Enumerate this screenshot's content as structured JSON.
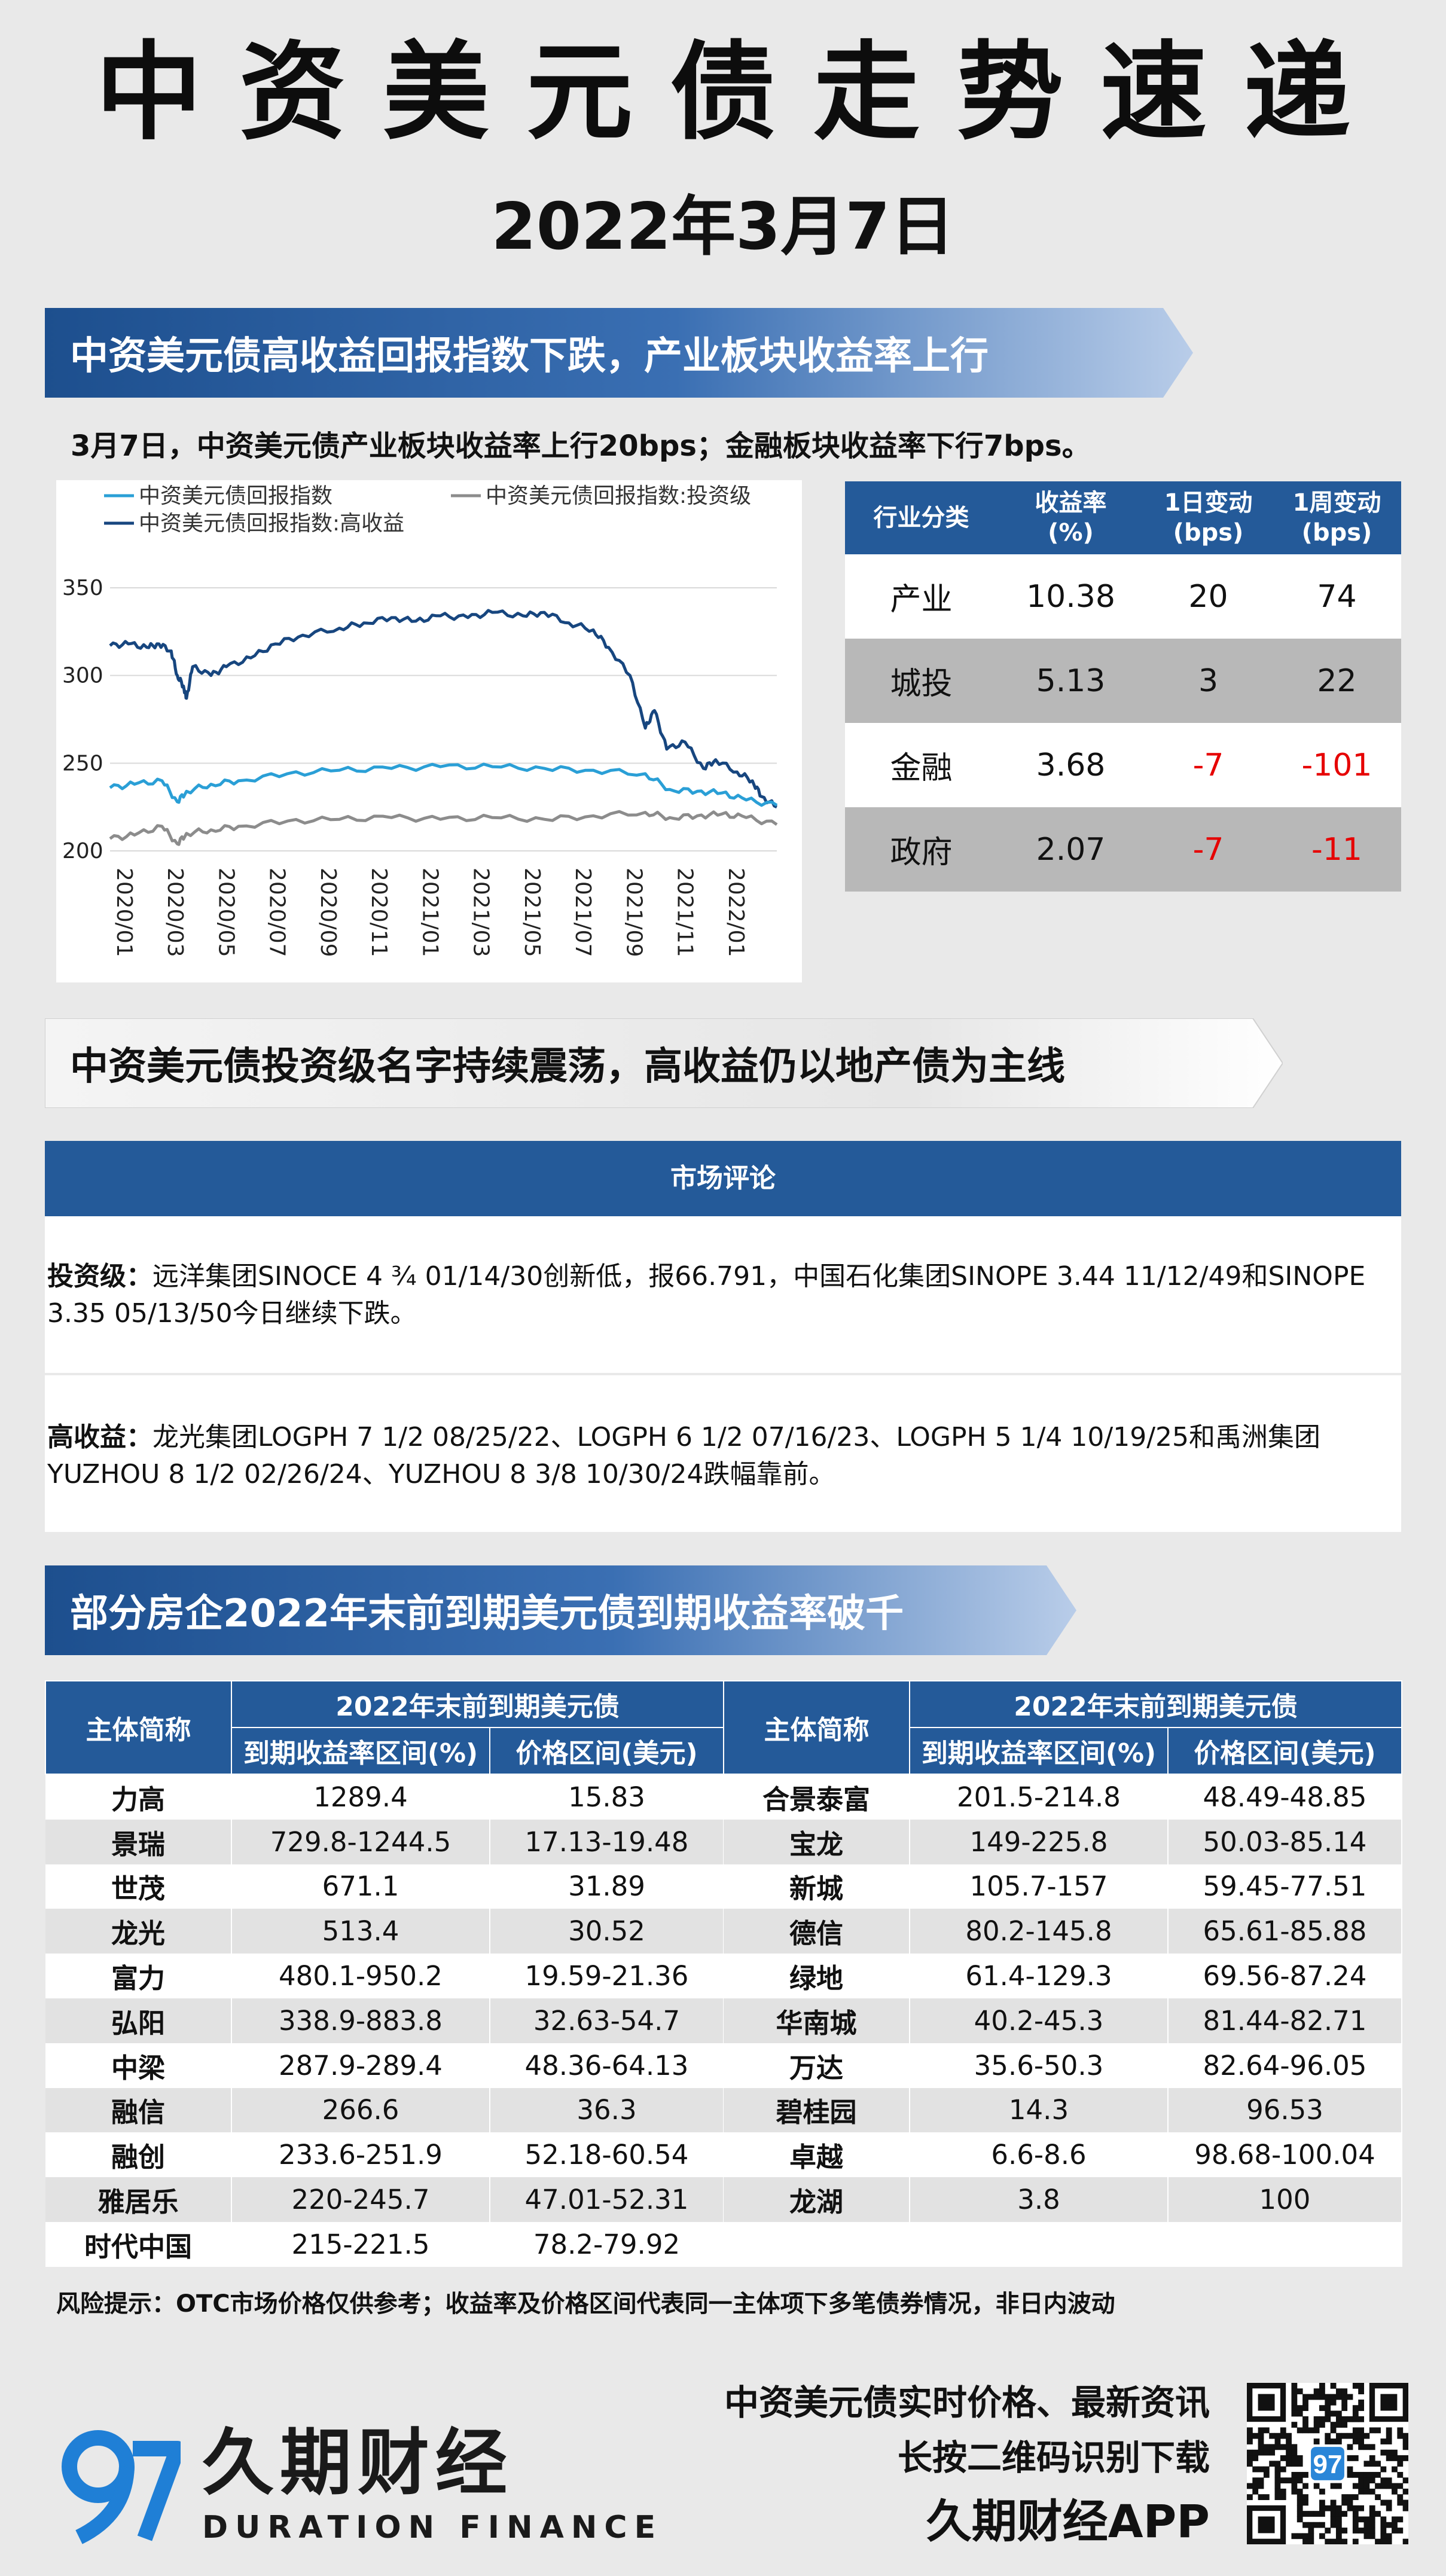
{
  "header": {
    "title": "中资美元债走势速递",
    "date": "2022年3月7日"
  },
  "section1": {
    "banner": "中资美元债高收益回报指数下跌，产业板块收益率上行",
    "subtitle": "3月7日，中资美元债产业板块收益率上行20bps；金融板块收益率下行7bps。"
  },
  "chart_data": {
    "type": "line",
    "x_labels": [
      "2020/01",
      "2020/03",
      "2020/05",
      "2020/07",
      "2020/09",
      "2020/11",
      "2021/01",
      "2021/03",
      "2021/05",
      "2021/07",
      "2021/09",
      "2021/11",
      "2022/01"
    ],
    "ylim": [
      200,
      350
    ],
    "yticks": [
      200,
      250,
      300,
      350
    ],
    "legend": [
      "中资美元债回报指数",
      "中资美元债回报指数:投资级",
      "中资美元债回报指数:高收益"
    ],
    "legend_position": "top-left",
    "grid": "horizontal",
    "colors": {
      "total": "#2a9fd6",
      "ig": "#8c8c8c",
      "hy": "#17467f"
    },
    "series": [
      {
        "name": "中资美元债回报指数:高收益",
        "values": [
          [
            2020.0,
            317
          ],
          [
            2020.06,
            318
          ],
          [
            2020.12,
            316
          ],
          [
            2020.16,
            318
          ],
          [
            2020.2,
            314
          ],
          [
            2020.22,
            300
          ],
          [
            2020.24,
            294
          ],
          [
            2020.25,
            287
          ],
          [
            2020.27,
            305
          ],
          [
            2020.33,
            300
          ],
          [
            2020.38,
            305
          ],
          [
            2020.46,
            310
          ],
          [
            2020.54,
            318
          ],
          [
            2020.63,
            323
          ],
          [
            2020.75,
            327
          ],
          [
            2020.83,
            330
          ],
          [
            2020.92,
            333
          ],
          [
            2021.0,
            331
          ],
          [
            2021.08,
            334
          ],
          [
            2021.17,
            333
          ],
          [
            2021.25,
            336
          ],
          [
            2021.35,
            334
          ],
          [
            2021.42,
            336
          ],
          [
            2021.5,
            330
          ],
          [
            2021.58,
            326
          ],
          [
            2021.63,
            316
          ],
          [
            2021.7,
            300
          ],
          [
            2021.75,
            270
          ],
          [
            2021.78,
            280
          ],
          [
            2021.82,
            258
          ],
          [
            2021.88,
            262
          ],
          [
            2021.94,
            247
          ],
          [
            2021.98,
            252
          ],
          [
            2022.05,
            245
          ],
          [
            2022.1,
            240
          ],
          [
            2022.13,
            231
          ],
          [
            2022.18,
            225
          ]
        ]
      },
      {
        "name": "中资美元债回报指数",
        "values": [
          [
            2020.0,
            236
          ],
          [
            2020.08,
            238
          ],
          [
            2020.17,
            240
          ],
          [
            2020.22,
            228
          ],
          [
            2020.25,
            234
          ],
          [
            2020.33,
            238
          ],
          [
            2020.42,
            240
          ],
          [
            2020.58,
            244
          ],
          [
            2020.75,
            246
          ],
          [
            2020.92,
            247
          ],
          [
            2021.08,
            248
          ],
          [
            2021.25,
            248
          ],
          [
            2021.42,
            247
          ],
          [
            2021.58,
            246
          ],
          [
            2021.75,
            244
          ],
          [
            2021.83,
            235
          ],
          [
            2021.92,
            234
          ],
          [
            2022.0,
            233
          ],
          [
            2022.08,
            229
          ],
          [
            2022.18,
            226
          ]
        ]
      },
      {
        "name": "中资美元债回报指数:投资级",
        "values": [
          [
            2020.0,
            207
          ],
          [
            2020.08,
            209
          ],
          [
            2020.17,
            214
          ],
          [
            2020.22,
            204
          ],
          [
            2020.25,
            210
          ],
          [
            2020.33,
            212
          ],
          [
            2020.42,
            214
          ],
          [
            2020.58,
            217
          ],
          [
            2020.75,
            218
          ],
          [
            2020.92,
            219
          ],
          [
            2021.08,
            218
          ],
          [
            2021.25,
            219
          ],
          [
            2021.42,
            218
          ],
          [
            2021.58,
            220
          ],
          [
            2021.75,
            222
          ],
          [
            2021.83,
            219
          ],
          [
            2021.92,
            220
          ],
          [
            2022.0,
            221
          ],
          [
            2022.08,
            219
          ],
          [
            2022.18,
            215
          ]
        ]
      }
    ]
  },
  "industry_table": {
    "headers": [
      "行业分类",
      "收益率\n(%)",
      "1日变动\n(bps)",
      "1周变动\n(bps)"
    ],
    "rows": [
      {
        "name": "产业",
        "yield": "10.38",
        "d1": "20",
        "w1": "74",
        "neg": false
      },
      {
        "name": "城投",
        "yield": "5.13",
        "d1": "3",
        "w1": "22",
        "neg": false
      },
      {
        "name": "金融",
        "yield": "3.68",
        "d1": "-7",
        "w1": "-101",
        "neg": true
      },
      {
        "name": "政府",
        "yield": "2.07",
        "d1": "-7",
        "w1": "-11",
        "neg": true
      }
    ]
  },
  "section2": {
    "banner": "中资美元债投资级名字持续震荡，高收益仍以地产债为主线",
    "comment_header": "市场评论",
    "ig_label": "投资级：",
    "ig_text": "远洋集团SINOCE 4 ¾ 01/14/30创新低，报66.791，中国石化集团SINOPE 3.44 11/12/49和SINOPE 3.35 05/13/50今日继续下跌。",
    "hy_label": "高收益：",
    "hy_text": "龙光集团LOGPH 7 1/2 08/25/22、LOGPH 6 1/2 07/16/23、LOGPH 5 1/4 10/19/25和禹洲集团YUZHOU 8 1/2 02/26/24、YUZHOU 8 3/8 10/30/24跌幅靠前。"
  },
  "section3": {
    "banner": "部分房企2022年末前到期美元债到期收益率破千",
    "col_entity": "主体简称",
    "col_group": "2022年末前到期美元债",
    "col_yield": "到期收益率区间(%)",
    "col_price": "价格区间(美元)",
    "left": [
      [
        "力高",
        "1289.4",
        "15.83"
      ],
      [
        "景瑞",
        "729.8-1244.5",
        "17.13-19.48"
      ],
      [
        "世茂",
        "671.1",
        "31.89"
      ],
      [
        "龙光",
        "513.4",
        "30.52"
      ],
      [
        "富力",
        "480.1-950.2",
        "19.59-21.36"
      ],
      [
        "弘阳",
        "338.9-883.8",
        "32.63-54.7"
      ],
      [
        "中梁",
        "287.9-289.4",
        "48.36-64.13"
      ],
      [
        "融信",
        "266.6",
        "36.3"
      ],
      [
        "融创",
        "233.6-251.9",
        "52.18-60.54"
      ],
      [
        "雅居乐",
        "220-245.7",
        "47.01-52.31"
      ],
      [
        "时代中国",
        "215-221.5",
        "78.2-79.92"
      ]
    ],
    "right": [
      [
        "合景泰富",
        "201.5-214.8",
        "48.49-48.85"
      ],
      [
        "宝龙",
        "149-225.8",
        "50.03-85.14"
      ],
      [
        "新城",
        "105.7-157",
        "59.45-77.51"
      ],
      [
        "德信",
        "80.2-145.8",
        "65.61-85.88"
      ],
      [
        "绿地",
        "61.4-129.3",
        "69.56-87.24"
      ],
      [
        "华南城",
        "40.2-45.3",
        "81.44-82.71"
      ],
      [
        "万达",
        "35.6-50.3",
        "82.64-96.05"
      ],
      [
        "碧桂园",
        "14.3",
        "96.53"
      ],
      [
        "卓越",
        "6.6-8.6",
        "98.68-100.04"
      ],
      [
        "龙湖",
        "3.8",
        "100"
      ],
      [
        "",
        "",
        ""
      ]
    ],
    "risk": "风险提示：OTC市场价格仅供参考；收益率及价格区间代表同一主体项下多笔债券情况，非日内波动"
  },
  "footer": {
    "brand_cn": "久期财经",
    "brand_en": "DURATION FINANCE",
    "promo_line1": "中资美元债实时价格、最新资讯",
    "promo_line2": "长按二维码识别下载",
    "promo_line3": "久期财经APP",
    "logo_mark": "97",
    "qr_mark": "97"
  }
}
